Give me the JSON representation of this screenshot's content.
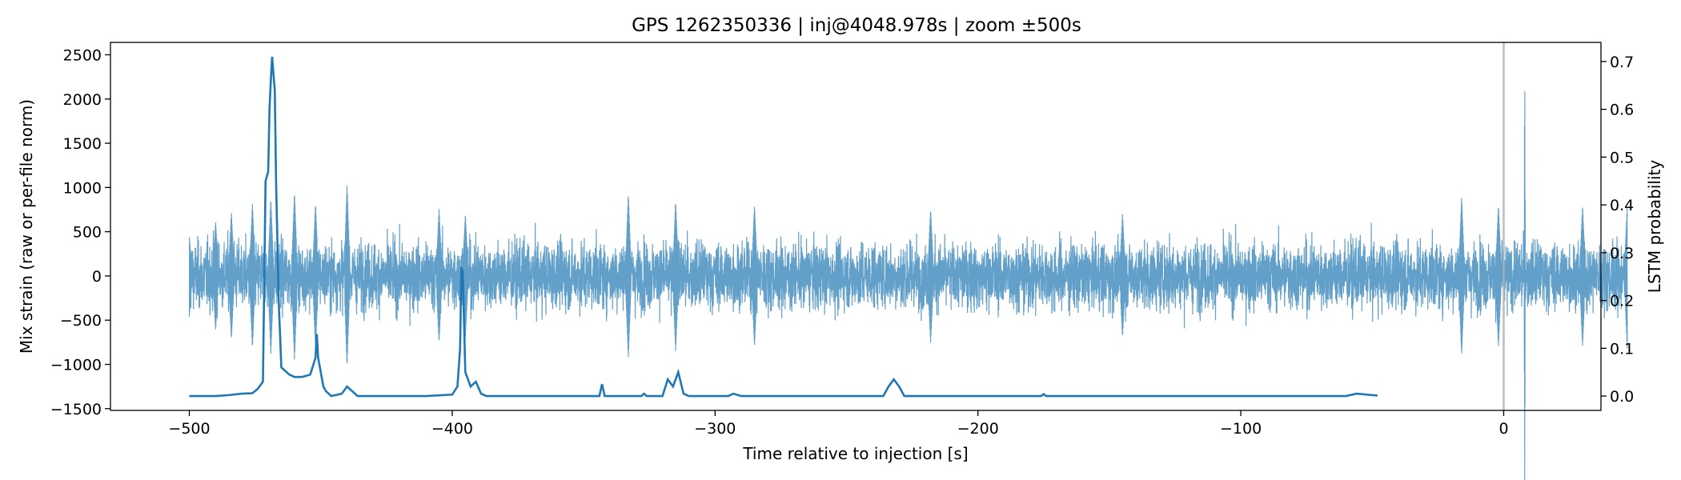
{
  "chart_data": {
    "type": "line",
    "title": "GPS 1262350336 | inj@4048.978s | zoom ±500s",
    "xlabel": "Time relative to injection [s]",
    "ylabel_left": "Mix strain (raw or per-file norm)",
    "ylabel_right": "LSTM probability",
    "xlim": [
      -530,
      37
    ],
    "ylim_left": [
      -1520,
      2640
    ],
    "ylim_right": [
      -0.03,
      0.74
    ],
    "x_ticks": [
      -500,
      -400,
      -300,
      -200,
      -100,
      0
    ],
    "x_tick_labels": [
      "−500",
      "−400",
      "−300",
      "−200",
      "−100",
      "0"
    ],
    "y_left_ticks": [
      2500,
      2000,
      1500,
      1000,
      500,
      0,
      -500,
      -1000,
      -1500
    ],
    "y_left_tick_labels": [
      "2500",
      "2000",
      "1500",
      "1000",
      "500",
      "0",
      "−500",
      "−1000",
      "−1500"
    ],
    "y_right_ticks": [
      0.7,
      0.6,
      0.5,
      0.4,
      0.3,
      0.2,
      0.1,
      0.0
    ],
    "y_right_tick_labels": [
      "0.7",
      "0.6",
      "0.5",
      "0.4",
      "0.3",
      "0.2",
      "0.1",
      "0.0"
    ],
    "grid": false,
    "injection_marker_x": 0,
    "colors": {
      "strain": "#1f77b4",
      "probability": "#1f77b4",
      "marker": "#b0b0b0"
    },
    "series": [
      {
        "axis": "left",
        "style": "noisy-fill",
        "x_range": [
          -500,
          47
        ],
        "baseline_amplitude": 480,
        "envelope_peaks": [
          {
            "x": -500,
            "amp": 460
          },
          {
            "x": -490,
            "amp": 620
          },
          {
            "x": -484,
            "amp": 720
          },
          {
            "x": -476,
            "amp": 820
          },
          {
            "x": -469,
            "amp": 880
          },
          {
            "x": -460,
            "amp": 950
          },
          {
            "x": -452,
            "amp": 820
          },
          {
            "x": -440,
            "amp": 1030
          },
          {
            "x": -405,
            "amp": 760
          },
          {
            "x": -395,
            "amp": 700
          },
          {
            "x": -333,
            "amp": 930
          },
          {
            "x": -315,
            "amp": 850
          },
          {
            "x": -285,
            "amp": 800
          },
          {
            "x": -218,
            "amp": 760
          },
          {
            "x": -145,
            "amp": 700
          },
          {
            "x": -16,
            "amp": 900
          },
          {
            "x": -2,
            "amp": 800
          },
          {
            "x": 8,
            "amp": 2500
          },
          {
            "x": 30,
            "amp": 800
          },
          {
            "x": 47,
            "amp": 820
          }
        ]
      },
      {
        "axis": "right",
        "style": "line",
        "points": [
          [
            -500,
            0.0
          ],
          [
            -490,
            0.0
          ],
          [
            -485,
            0.002
          ],
          [
            -480,
            0.005
          ],
          [
            -476,
            0.006
          ],
          [
            -474,
            0.015
          ],
          [
            -472,
            0.03
          ],
          [
            -471,
            0.45
          ],
          [
            -470,
            0.47
          ],
          [
            -469.5,
            0.6
          ],
          [
            -469,
            0.66
          ],
          [
            -468.5,
            0.71
          ],
          [
            -467.5,
            0.64
          ],
          [
            -467,
            0.45
          ],
          [
            -466,
            0.2
          ],
          [
            -465,
            0.06
          ],
          [
            -462,
            0.045
          ],
          [
            -460,
            0.04
          ],
          [
            -457,
            0.04
          ],
          [
            -454,
            0.045
          ],
          [
            -452,
            0.08
          ],
          [
            -451.5,
            0.13
          ],
          [
            -451,
            0.08
          ],
          [
            -449,
            0.02
          ],
          [
            -448,
            0.01
          ],
          [
            -446,
            0.0
          ],
          [
            -442,
            0.005
          ],
          [
            -440,
            0.02
          ],
          [
            -438,
            0.01
          ],
          [
            -436,
            0.0
          ],
          [
            -410,
            0.0
          ],
          [
            -400,
            0.003
          ],
          [
            -398,
            0.02
          ],
          [
            -397,
            0.1
          ],
          [
            -396.5,
            0.27
          ],
          [
            -396,
            0.26
          ],
          [
            -395,
            0.05
          ],
          [
            -393,
            0.02
          ],
          [
            -391,
            0.03
          ],
          [
            -389,
            0.005
          ],
          [
            -387,
            0.0
          ],
          [
            -344,
            0.0
          ],
          [
            -343,
            0.025
          ],
          [
            -342,
            0.0
          ],
          [
            -328,
            0.0
          ],
          [
            -327,
            0.005
          ],
          [
            -326,
            0.0
          ],
          [
            -320,
            0.0
          ],
          [
            -318,
            0.035
          ],
          [
            -316,
            0.02
          ],
          [
            -314,
            0.05
          ],
          [
            -312,
            0.005
          ],
          [
            -310,
            0.0
          ],
          [
            -295,
            0.0
          ],
          [
            -293,
            0.005
          ],
          [
            -290,
            0.0
          ],
          [
            -236,
            0.0
          ],
          [
            -234,
            0.02
          ],
          [
            -232,
            0.035
          ],
          [
            -230,
            0.02
          ],
          [
            -228,
            0.0
          ],
          [
            -176,
            0.0
          ],
          [
            -175,
            0.004
          ],
          [
            -174,
            0.0
          ],
          [
            -60,
            0.0
          ],
          [
            -56,
            0.005
          ],
          [
            -50,
            0.002
          ],
          [
            -48,
            0.001
          ]
        ]
      }
    ]
  }
}
